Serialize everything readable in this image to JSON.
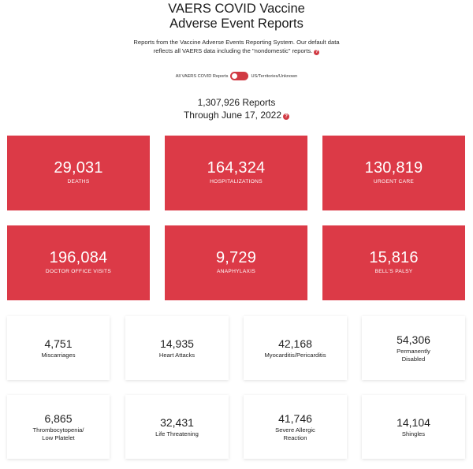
{
  "header": {
    "title_line1": "VAERS COVID Vaccine",
    "title_line2": "Adverse Event Reports",
    "intro_line1": "Reports from the Vaccine Adverse Events Reporting System. Our default data",
    "intro_line2": "reflects all VAERS data including the \"nondomestic\" reports.",
    "info_glyph": "?"
  },
  "toggle": {
    "left_label": "All VAERS COVID Reports",
    "right_label": "US/Territories/Unknown"
  },
  "summary": {
    "reports": "1,307,926 Reports",
    "through": "Through June 17, 2022",
    "info_glyph": "?"
  },
  "red_cards": [
    {
      "value": "29,031",
      "label": "DEATHS"
    },
    {
      "value": "164,324",
      "label": "HOSPITALIZATIONS"
    },
    {
      "value": "130,819",
      "label": "URGENT CARE"
    },
    {
      "value": "196,084",
      "label": "DOCTOR OFFICE VISITS"
    },
    {
      "value": "9,729",
      "label": "ANAPHYLAXIS"
    },
    {
      "value": "15,816",
      "label": "BELL'S PALSY"
    }
  ],
  "white_cards": [
    {
      "value": "4,751",
      "label_line1": "Miscarriages",
      "label_line2": ""
    },
    {
      "value": "14,935",
      "label_line1": "Heart Attacks",
      "label_line2": ""
    },
    {
      "value": "42,168",
      "label_line1": "Myocarditis/Pericarditis",
      "label_line2": ""
    },
    {
      "value": "54,306",
      "label_line1": "Permanently",
      "label_line2": "Disabled"
    },
    {
      "value": "6,865",
      "label_line1": "Thrombocytopenia/",
      "label_line2": "Low Platelet"
    },
    {
      "value": "32,431",
      "label_line1": "Life Threatening",
      "label_line2": ""
    },
    {
      "value": "41,746",
      "label_line1": "Severe Allergic",
      "label_line2": "Reaction"
    },
    {
      "value": "14,104",
      "label_line1": "Shingles",
      "label_line2": ""
    }
  ],
  "colors": {
    "accent_red": "#dc3a47",
    "toggle_red": "#d13a43"
  }
}
